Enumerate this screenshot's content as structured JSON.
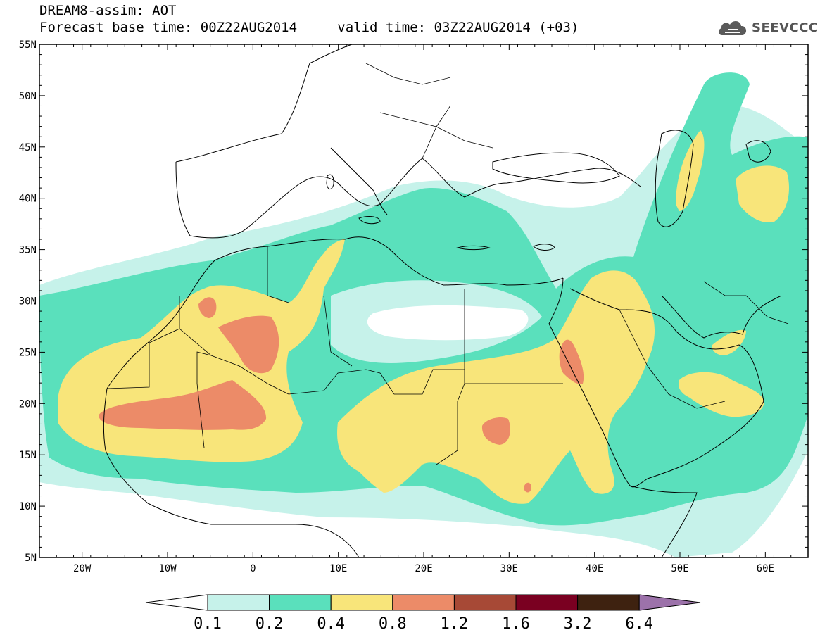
{
  "header": {
    "model_title": "DREAM8-assim: AOT",
    "base_time": "Forecast base time: 00Z22AUG2014",
    "valid_time": "valid time: 03Z22AUG2014 (+03)"
  },
  "logo": {
    "text": "SEEVCCC",
    "icon": "cloud-icon"
  },
  "map": {
    "region": "North Africa, Middle East and Europe",
    "lon_range": [
      -25,
      65
    ],
    "lat_range": [
      5,
      55
    ],
    "lat_labels": [
      "55N",
      "50N",
      "45N",
      "40N",
      "35N",
      "30N",
      "25N",
      "20N",
      "15N",
      "10N",
      "5N"
    ],
    "lon_labels": [
      "20W",
      "10W",
      "0",
      "10E",
      "20E",
      "30E",
      "40E",
      "50E",
      "60E"
    ],
    "field": "aerosol optical thickness",
    "frame_color": "#000000"
  },
  "colorbar": {
    "labels": [
      "0.1",
      "0.2",
      "0.4",
      "0.8",
      "1.2",
      "1.6",
      "3.2",
      "6.4"
    ],
    "colors": [
      "#ffffff",
      "#c6f2ea",
      "#5ae0bc",
      "#f8e57a",
      "#ec8b68",
      "#a74936",
      "#7a0021",
      "#3e2210",
      "#9c72aa"
    ]
  }
}
